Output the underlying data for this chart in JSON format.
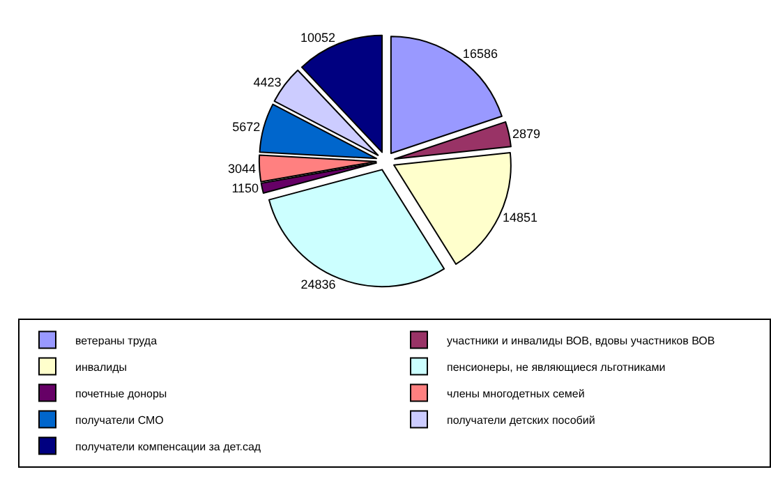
{
  "chart_data": {
    "type": "pie",
    "categories": [
      "ветераны труда",
      "участники и инвалиды ВОВ, вдовы участников ВОВ",
      "инвалиды",
      "пенсионеры, не являющиеся льготниками",
      "почетные доноры",
      "члены многодетных семей",
      "получатели СМО",
      "получатели детских пособий",
      "получатели компенсации за дет.сад"
    ],
    "values": [
      16586,
      2879,
      14851,
      24836,
      1150,
      3044,
      5672,
      4423,
      10052
    ],
    "colors": [
      "#9999ff",
      "#993366",
      "#ffffcc",
      "#ccffff",
      "#660066",
      "#ff8080",
      "#0066cc",
      "#ccccff",
      "#000080"
    ],
    "data_labels": true,
    "legend": "bottom"
  }
}
